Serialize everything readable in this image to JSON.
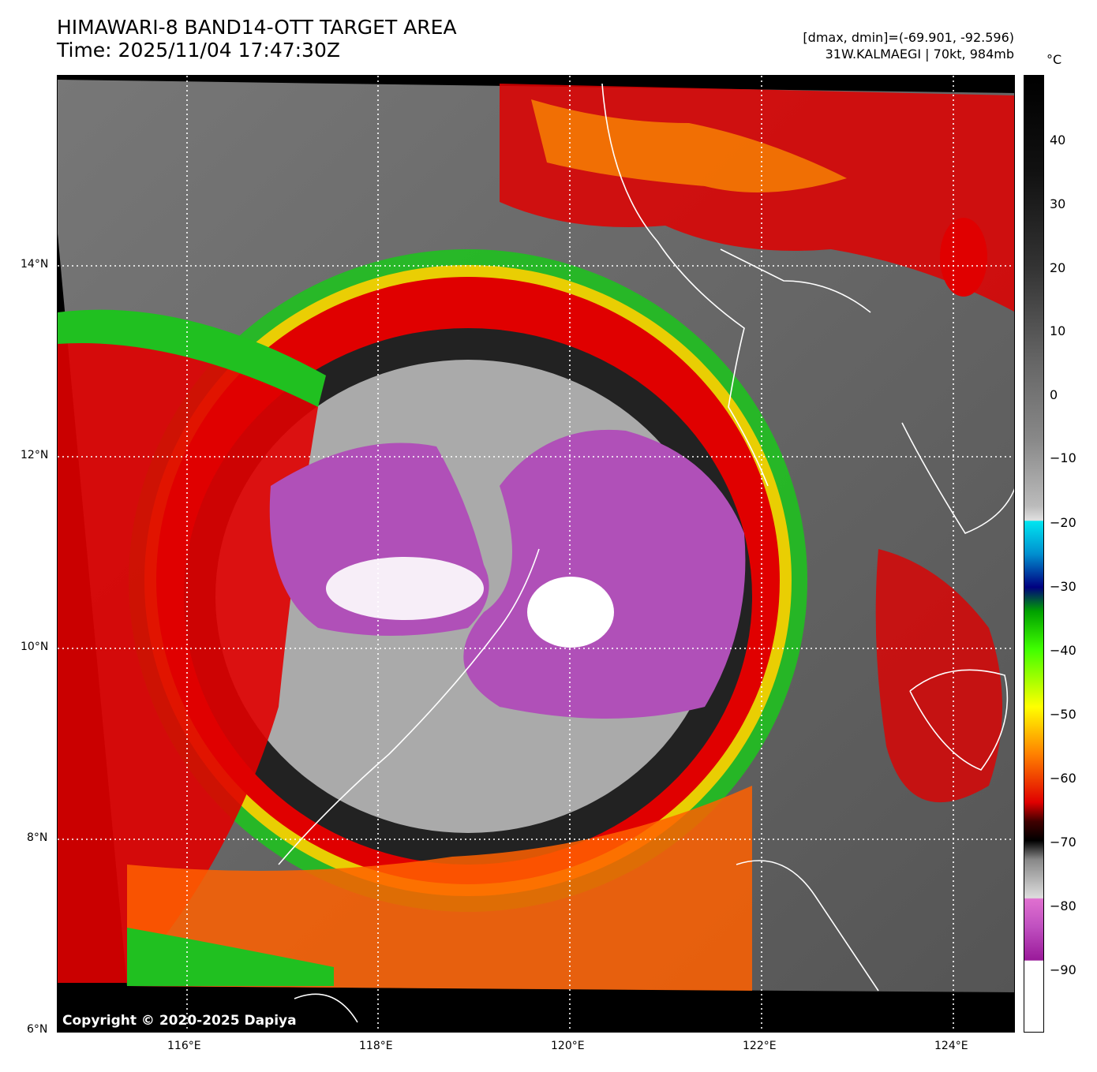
{
  "header": {
    "title_line1": "HIMAWARI-8 BAND14-OTT TARGET AREA",
    "title_line2": "Time: 2025/11/04 17:47:30Z",
    "range_text": "[dmax, dmin]=(-69.901, -92.596)",
    "storm_text": "31W.KALMAEGI | 70kt, 984mb"
  },
  "map": {
    "lat_labels": [
      "14°N",
      "12°N",
      "10°N",
      "8°N",
      "6°N"
    ],
    "lon_labels": [
      "116°E",
      "118°E",
      "120°E",
      "122°E",
      "124°E"
    ],
    "copyright": "Copyright © 2020-2025 Dapiya"
  },
  "colorbar": {
    "unit": "°C",
    "ticks": [
      "40",
      "30",
      "20",
      "10",
      "0",
      "−10",
      "−20",
      "−30",
      "−40",
      "−50",
      "−60",
      "−70",
      "−80",
      "−90"
    ]
  },
  "colors": {
    "overshoot_magenta": "#c050c0",
    "cold_white": "#ffffff",
    "red": "#e00000",
    "green": "#20c020",
    "cyan": "#00e0f0"
  }
}
